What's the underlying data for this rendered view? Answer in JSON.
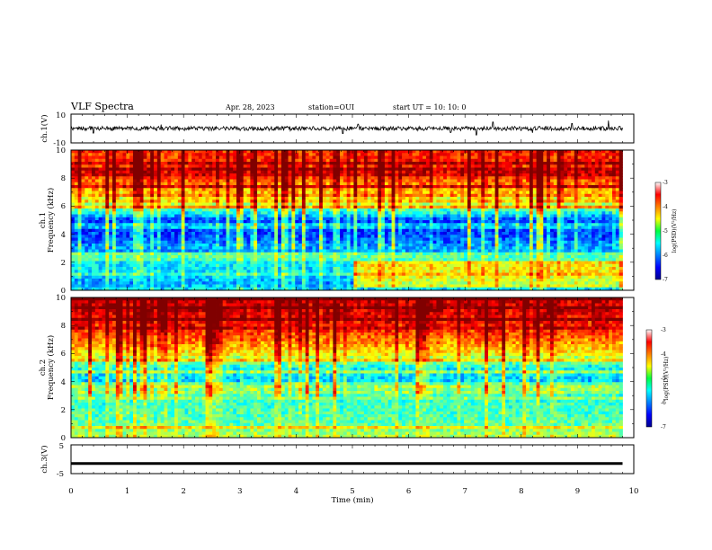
{
  "header": {
    "title": "VLF Spectra",
    "date": "Apr. 28, 2023",
    "station": "station=OUI",
    "start_ut": "start  UT =   10: 10: 0"
  },
  "chart_data": [
    {
      "type": "line",
      "name": "ch1-waveform",
      "ylabel": "ch.1(V)",
      "ylim": [
        -10,
        10
      ],
      "yticks": [
        "10",
        "-10"
      ],
      "xlim": [
        0,
        9.8
      ],
      "baseline": 0,
      "typical_amplitude": 1.5,
      "spikes": [
        {
          "x": 0.4,
          "y": -3.2
        },
        {
          "x": 1.6,
          "y": 2.8
        },
        {
          "x": 4.83,
          "y": -3.5
        },
        {
          "x": 5.1,
          "y": 3.0
        },
        {
          "x": 7.2,
          "y": -4.5
        },
        {
          "x": 7.5,
          "y": 4.5
        },
        {
          "x": 8.2,
          "y": -3.0
        },
        {
          "x": 8.9,
          "y": 3.5
        },
        {
          "x": 9.55,
          "y": 5.5
        },
        {
          "x": 6.75,
          "y": -2.8
        }
      ]
    },
    {
      "type": "heatmap",
      "name": "ch1-spectrogram",
      "ylabel_top": "ch.1",
      "ylabel": "Frequency (kHz)",
      "ylim": [
        0,
        10
      ],
      "yticks": [
        "0",
        "2",
        "4",
        "6",
        "8",
        "10"
      ],
      "xlim": [
        0,
        9.8
      ],
      "colorbar": {
        "label": "log(PSD)(V²/Hz)",
        "range": [
          -7,
          -3
        ],
        "ticks": [
          "-3",
          "-4",
          "-5",
          "-6",
          "-7"
        ]
      },
      "psd_profile_khz": [
        [
          0,
          -5.6
        ],
        [
          0.5,
          -6.0
        ],
        [
          1,
          -5.7
        ],
        [
          2,
          -5.6
        ],
        [
          3,
          -6.0
        ],
        [
          4,
          -6.4
        ],
        [
          5,
          -6.4
        ],
        [
          6,
          -5.0
        ],
        [
          7,
          -4.4
        ],
        [
          8,
          -3.9
        ],
        [
          9,
          -3.8
        ],
        [
          10,
          -3.8
        ]
      ],
      "cyan_band_after_min": 5.0,
      "cyan_band_khz": [
        0.3,
        2.0
      ]
    },
    {
      "type": "heatmap",
      "name": "ch2-spectrogram",
      "ylabel_top": "ch.2",
      "ylabel": "Frequency (kHz)",
      "ylim": [
        0,
        10
      ],
      "yticks": [
        "0",
        "2",
        "4",
        "6",
        "8",
        "10"
      ],
      "xlim": [
        0,
        9.8
      ],
      "colorbar": {
        "label": "log(PSD)(V²/Hz)",
        "range": [
          -7,
          -3
        ],
        "ticks": [
          "-3",
          "-4",
          "-5",
          "-6",
          "-7"
        ]
      },
      "psd_profile_khz": [
        [
          0,
          -4.8
        ],
        [
          0.5,
          -5.0
        ],
        [
          1,
          -5.2
        ],
        [
          2,
          -5.3
        ],
        [
          3,
          -5.4
        ],
        [
          4,
          -5.8
        ],
        [
          5,
          -5.6
        ],
        [
          6,
          -4.6
        ],
        [
          7,
          -4.1
        ],
        [
          8,
          -3.7
        ],
        [
          9,
          -3.5
        ],
        [
          10,
          -3.4
        ]
      ]
    },
    {
      "type": "line",
      "name": "ch3-waveform",
      "ylabel": "ch.3(V)",
      "ylim": [
        -5,
        5
      ],
      "yticks": [
        "5",
        "0",
        "-5"
      ],
      "xlim": [
        0,
        9.8
      ],
      "baseline": -1.5
    }
  ],
  "time_axis": {
    "xlabel": "Time  (min)",
    "xlim": [
      0,
      10
    ],
    "ticks": [
      "0",
      "1",
      "2",
      "3",
      "4",
      "5",
      "6",
      "7",
      "8",
      "9",
      "10"
    ]
  }
}
